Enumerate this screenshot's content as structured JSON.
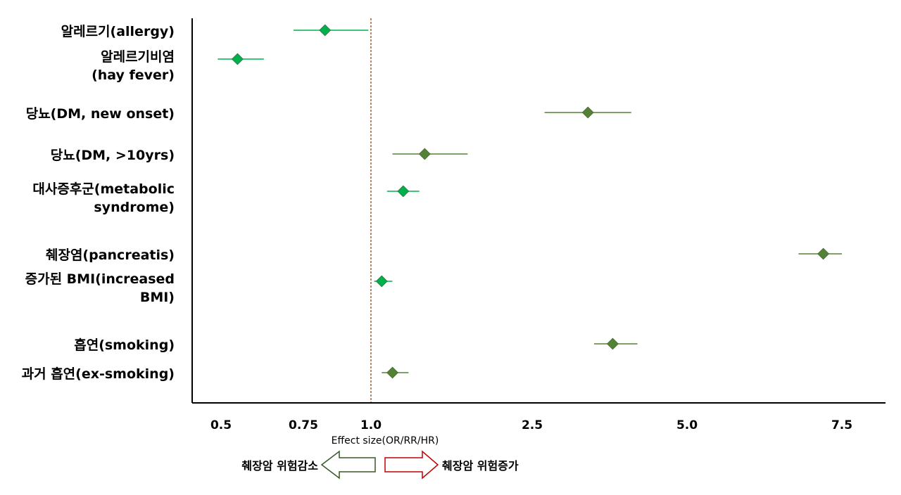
{
  "chart_data": {
    "type": "scatter",
    "subtype": "forest-plot",
    "xlabel": "Effect size(OR/RR/HR)",
    "x_ticks": [
      {
        "label": "0.5",
        "value": 0.5
      },
      {
        "label": "0.75",
        "value": 0.75
      },
      {
        "label": "1.0",
        "value": 1.0
      },
      {
        "label": "2.5",
        "value": 2.5
      },
      {
        "label": "5.0",
        "value": 5.0
      },
      {
        "label": "7.5",
        "value": 7.5
      }
    ],
    "reference_line": 1.0,
    "grid": false,
    "rows": [
      {
        "label_lines": [
          "알레르기(allergy)"
        ],
        "estimate": 0.83,
        "lower": 0.72,
        "upper": 0.99,
        "color": "#00B050"
      },
      {
        "label_lines": [
          "알레르기비염",
          "(hay fever)"
        ],
        "estimate": 0.55,
        "lower": 0.49,
        "upper": 0.63,
        "color": "#00B050"
      },
      {
        "label_lines": [
          "당뇨(DM, new onset)"
        ],
        "estimate": 3.4,
        "lower": 2.7,
        "upper": 4.1,
        "color": "#548235"
      },
      {
        "label_lines": [
          "당뇨(DM, >10yrs)"
        ],
        "estimate": 1.5,
        "lower": 1.2,
        "upper": 1.9,
        "color": "#548235"
      },
      {
        "label_lines": [
          "대사증후군(metabolic",
          "syndrome)"
        ],
        "estimate": 1.3,
        "lower": 1.15,
        "upper": 1.45,
        "color": "#00B050"
      },
      {
        "label_lines": [
          "췌장염(pancreatis)"
        ],
        "estimate": 7.2,
        "lower": 6.8,
        "upper": 7.5,
        "color": "#548235"
      },
      {
        "label_lines": [
          "증가된 BMI(increased",
          "BMI)"
        ],
        "estimate": 1.1,
        "lower": 1.03,
        "upper": 1.2,
        "color": "#00B050"
      },
      {
        "label_lines": [
          "흡연(smoking)"
        ],
        "estimate": 3.8,
        "lower": 3.5,
        "upper": 4.2,
        "color": "#548235"
      },
      {
        "label_lines": [
          "과거 흡연(ex-smoking)"
        ],
        "estimate": 1.2,
        "lower": 1.1,
        "upper": 1.35,
        "color": "#548235"
      }
    ],
    "legend": {
      "decrease": {
        "text": "췌장암 위험감소",
        "color": "#385723"
      },
      "increase": {
        "text": "췌장암 위험증가",
        "color": "#C00000"
      }
    }
  }
}
